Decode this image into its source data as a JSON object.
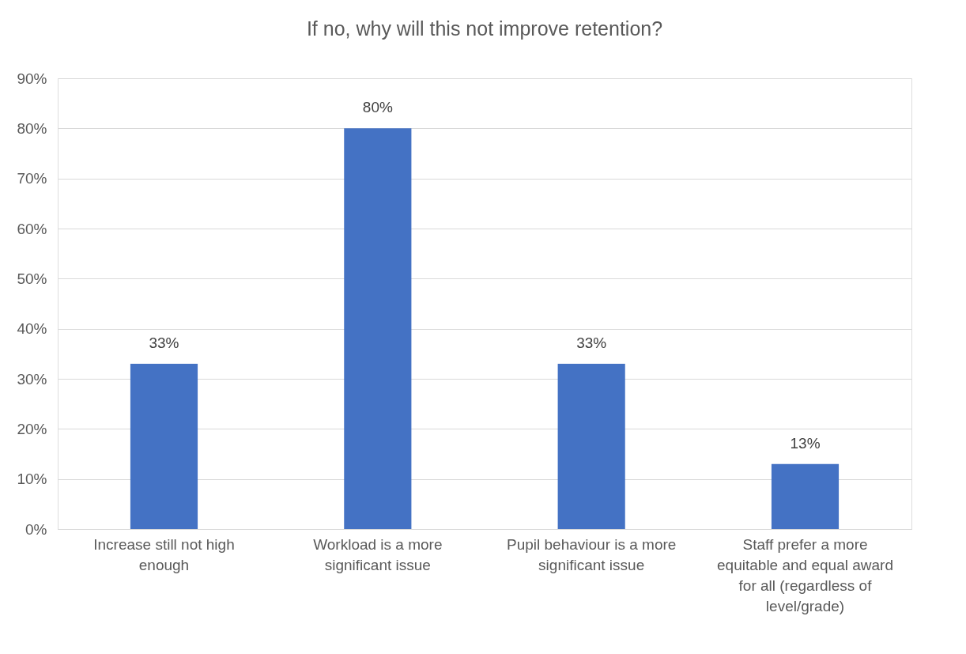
{
  "chart_data": {
    "type": "bar",
    "title": "If no, why will this not improve retention?",
    "categories": [
      "Increase still not high enough",
      "Workload is a more significant issue",
      "Pupil behaviour is a more significant issue",
      "Staff prefer a more equitable and equal award for all (regardless of level/grade)"
    ],
    "values": [
      33,
      80,
      33,
      13
    ],
    "value_labels": [
      "33%",
      "80%",
      "33%",
      "13%"
    ],
    "color": "#4472c4",
    "ylim": [
      0,
      90
    ],
    "yticks": [
      {
        "value": 0,
        "label": "0%"
      },
      {
        "value": 10,
        "label": "10%"
      },
      {
        "value": 20,
        "label": "20%"
      },
      {
        "value": 30,
        "label": "30%"
      },
      {
        "value": 40,
        "label": "40%"
      },
      {
        "value": 50,
        "label": "50%"
      },
      {
        "value": 60,
        "label": "60%"
      },
      {
        "value": 70,
        "label": "70%"
      },
      {
        "value": 80,
        "label": "80%"
      },
      {
        "value": 90,
        "label": "90%"
      }
    ],
    "grid": "y"
  }
}
